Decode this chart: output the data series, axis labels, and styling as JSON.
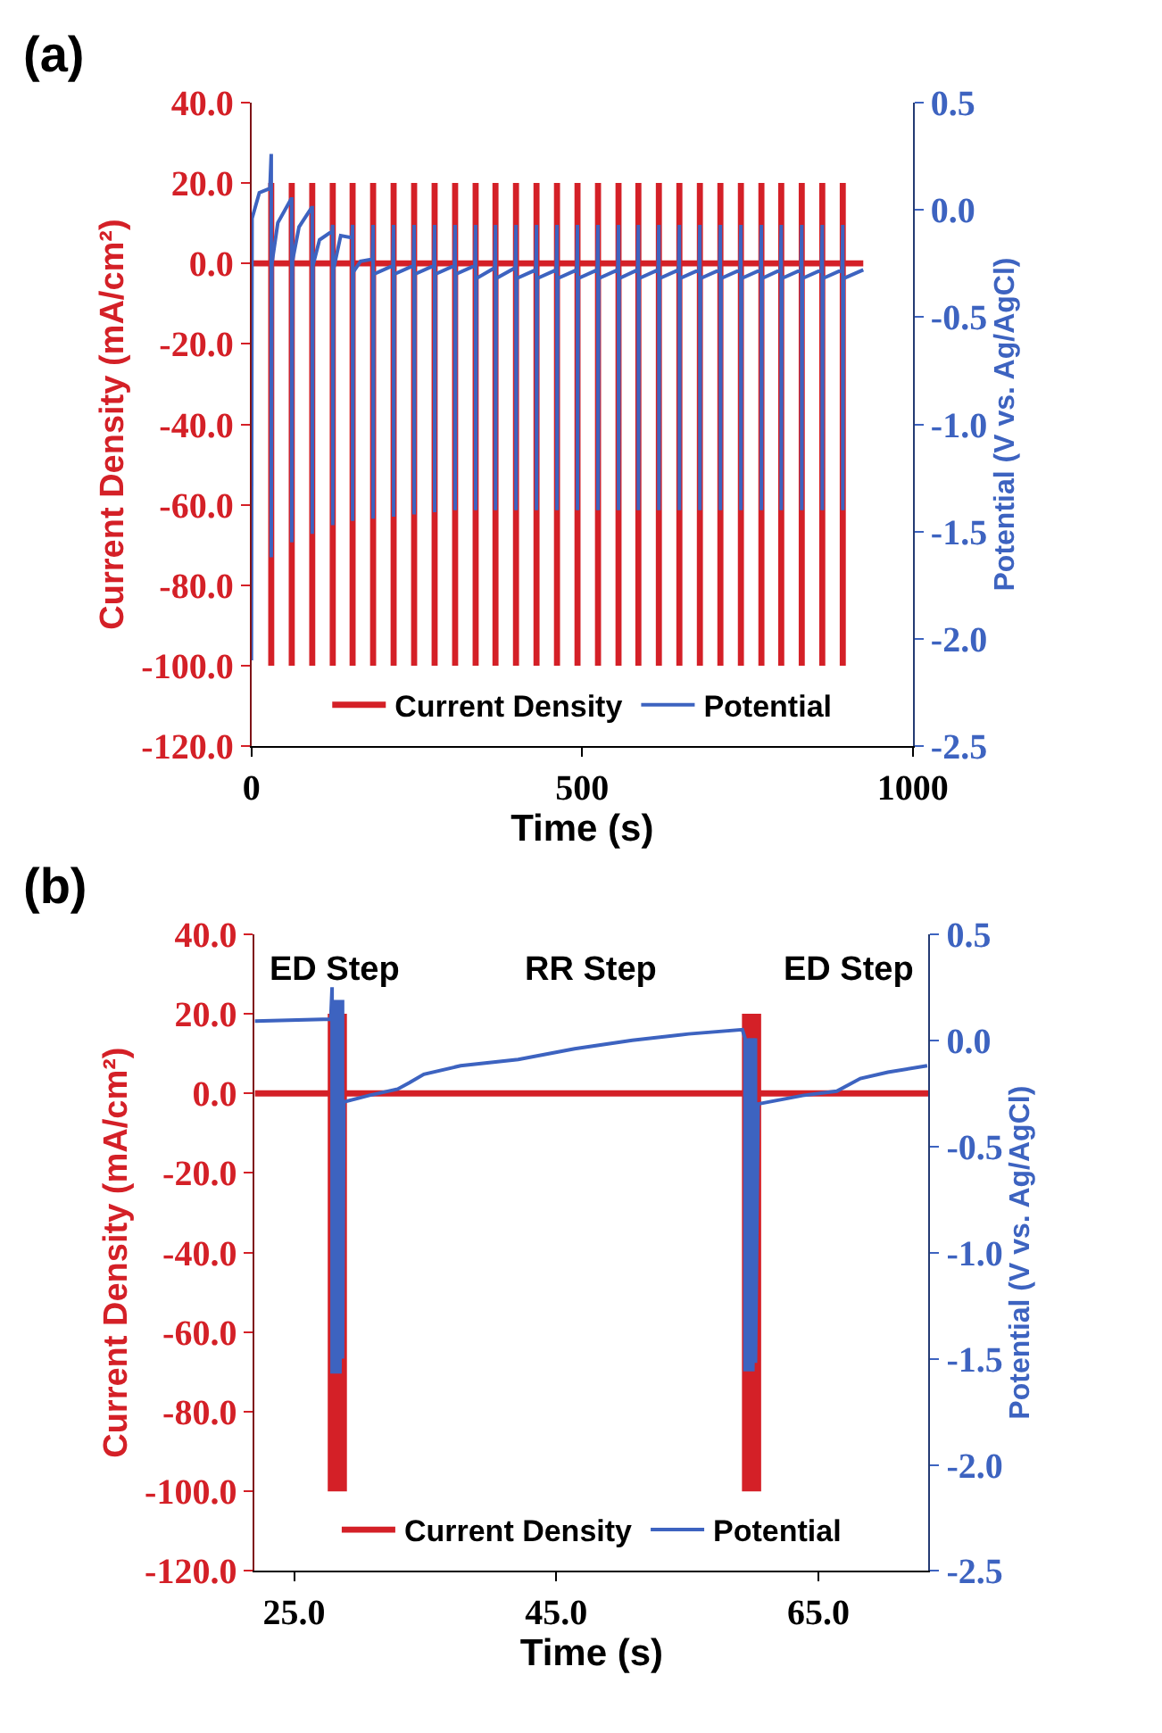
{
  "chart_data": [
    {
      "type": "line",
      "title": "(a)",
      "xlabel": "Time (s)",
      "ylabel": "Current Density (mA/cm²)",
      "y2label": "Potential (V vs. Ag/AgCl)",
      "legend": "bottom",
      "xlim": [
        0,
        1000
      ],
      "xticks": [
        0,
        500,
        1000
      ],
      "ylim": [
        -120,
        40
      ],
      "yticks": [
        {
          "value": 40,
          "label": "40.0"
        },
        {
          "value": 20,
          "label": "20.0"
        },
        {
          "value": 0,
          "label": "0.0"
        },
        {
          "value": -20,
          "label": "-20.0"
        },
        {
          "value": -40,
          "label": "-40.0"
        },
        {
          "value": -60,
          "label": "-60.0"
        },
        {
          "value": -80,
          "label": "-80.0"
        },
        {
          "value": -100,
          "label": "-100.0"
        },
        {
          "value": -120,
          "label": "-120.0"
        }
      ],
      "y2lim": [
        -2.5,
        0.5
      ],
      "y2ticks": [
        {
          "value": 0.5,
          "label": "0.5"
        },
        {
          "value": 0,
          "label": "0.0"
        },
        {
          "value": -0.5,
          "label": "-0.5"
        },
        {
          "value": -1,
          "label": "-1.0"
        },
        {
          "value": -1.5,
          "label": "-1.5"
        },
        {
          "value": -2,
          "label": "-2.0"
        },
        {
          "value": -2.5,
          "label": "-2.5"
        }
      ],
      "series": [
        {
          "name": "Current Density",
          "color": "#d42027",
          "x": [
            0,
            30,
            30,
            30,
            30,
            61,
            61,
            61,
            61,
            92,
            92,
            92,
            92,
            123,
            123,
            123,
            123,
            153,
            153,
            153,
            153,
            184,
            184,
            184,
            184,
            215,
            215,
            215,
            215,
            246,
            246,
            246,
            246,
            277,
            277,
            277,
            277,
            308,
            308,
            308,
            308,
            339,
            339,
            339,
            339,
            369,
            369,
            369,
            369,
            400,
            400,
            400,
            400,
            431,
            431,
            431,
            431,
            462,
            462,
            462,
            462,
            493,
            493,
            493,
            493,
            524,
            524,
            524,
            524,
            555,
            555,
            555,
            555,
            585,
            585,
            585,
            585,
            616,
            616,
            616,
            616,
            647,
            647,
            647,
            647,
            678,
            678,
            678,
            678,
            709,
            709,
            709,
            709,
            740,
            740,
            740,
            740,
            771,
            771,
            771,
            771,
            801,
            801,
            801,
            801,
            832,
            832,
            832,
            832,
            863,
            863,
            863,
            863,
            894,
            894,
            894,
            894,
            925
          ],
          "values": [
            0,
            0,
            20,
            -100,
            0,
            0,
            20,
            -100,
            0,
            0,
            20,
            -100,
            0,
            0,
            20,
            -100,
            0,
            0,
            20,
            -100,
            0,
            0,
            20,
            -100,
            0,
            0,
            20,
            -100,
            0,
            0,
            20,
            -100,
            0,
            0,
            20,
            -100,
            0,
            0,
            20,
            -100,
            0,
            0,
            20,
            -100,
            0,
            0,
            20,
            -100,
            0,
            0,
            20,
            -100,
            0,
            0,
            20,
            -100,
            0,
            0,
            20,
            -100,
            0,
            0,
            20,
            -100,
            0,
            0,
            20,
            -100,
            0,
            0,
            20,
            -100,
            0,
            0,
            20,
            -100,
            0,
            0,
            20,
            -100,
            0,
            0,
            20,
            -100,
            0,
            0,
            20,
            -100,
            0,
            0,
            20,
            -100,
            0,
            0,
            20,
            -100,
            0,
            0,
            20,
            -100,
            0,
            0,
            20,
            -100,
            0,
            0,
            20,
            -100,
            0,
            0,
            20,
            -100,
            0,
            0,
            20,
            -100,
            0,
            0
          ]
        },
        {
          "name": "Potential",
          "color": "#3d63c0",
          "axis": "y2",
          "x": [
            0,
            1,
            12,
            28,
            30,
            30,
            31,
            40,
            60,
            61,
            61,
            62,
            72,
            91,
            92,
            92,
            93,
            103,
            122,
            123,
            123,
            124,
            135,
            152,
            153,
            153,
            154,
            165,
            183,
            184,
            184,
            185,
            214,
            215,
            215,
            216,
            245,
            246,
            246,
            247,
            276,
            277,
            277,
            278,
            307,
            308,
            308,
            309,
            338,
            339,
            339,
            340,
            368,
            369,
            369,
            370,
            399,
            400,
            400,
            401,
            430,
            431,
            431,
            432,
            461,
            462,
            462,
            463,
            492,
            493,
            493,
            494,
            523,
            524,
            524,
            525,
            554,
            555,
            555,
            556,
            584,
            585,
            585,
            586,
            615,
            616,
            616,
            617,
            646,
            647,
            647,
            648,
            677,
            678,
            678,
            679,
            708,
            709,
            709,
            710,
            739,
            740,
            740,
            741,
            770,
            771,
            771,
            772,
            800,
            801,
            801,
            802,
            831,
            832,
            832,
            833,
            862,
            863,
            863,
            864,
            893,
            894,
            894,
            895,
            925
          ],
          "values": [
            -2.1,
            -0.04,
            0.08,
            0.1,
            0.26,
            -1.62,
            -0.25,
            -0.06,
            0.05,
            0.05,
            -1.55,
            -0.24,
            -0.08,
            0.01,
            0.01,
            -1.51,
            -0.26,
            -0.14,
            -0.1,
            -0.07,
            -1.47,
            -0.28,
            -0.12,
            -0.13,
            -0.07,
            -1.45,
            -0.29,
            -0.24,
            -0.23,
            -0.07,
            -1.44,
            -0.3,
            -0.26,
            -0.07,
            -1.43,
            -0.3,
            -0.26,
            -0.07,
            -1.42,
            -0.3,
            -0.26,
            -0.07,
            -1.41,
            -0.3,
            -0.26,
            -0.07,
            -1.4,
            -0.3,
            -0.26,
            -0.07,
            -1.4,
            -0.32,
            -0.27,
            -0.07,
            -1.4,
            -0.32,
            -0.27,
            -0.07,
            -1.4,
            -0.32,
            -0.28,
            -0.07,
            -1.4,
            -0.32,
            -0.28,
            -0.07,
            -1.4,
            -0.32,
            -0.28,
            -0.07,
            -1.4,
            -0.32,
            -0.28,
            -0.07,
            -1.4,
            -0.32,
            -0.28,
            -0.07,
            -1.4,
            -0.32,
            -0.28,
            -0.07,
            -1.4,
            -0.32,
            -0.28,
            -0.07,
            -1.4,
            -0.32,
            -0.28,
            -0.07,
            -1.4,
            -0.32,
            -0.28,
            -0.07,
            -1.4,
            -0.32,
            -0.28,
            -0.07,
            -1.4,
            -0.32,
            -0.28,
            -0.07,
            -1.4,
            -0.32,
            -0.28,
            -0.07,
            -1.4,
            -0.32,
            -0.28,
            -0.07,
            -1.4,
            -0.32,
            -0.28,
            -0.07,
            -1.4,
            -0.32,
            -0.28,
            -0.07,
            -1.4,
            -0.32,
            -0.28,
            -0.07,
            -1.4,
            -0.32,
            -0.28
          ]
        }
      ]
    },
    {
      "type": "line",
      "title": "(b)",
      "xlabel": "Time (s)",
      "ylabel": "Current Density (mA/cm²)",
      "y2label": "Potential (V vs. Ag/AgCl)",
      "legend": "bottom",
      "xlim": [
        22,
        73.4
      ],
      "xticks": [
        {
          "value": 25,
          "label": "25.0"
        },
        {
          "value": 45,
          "label": "45.0"
        },
        {
          "value": 65,
          "label": "65.0"
        }
      ],
      "ylim": [
        -120,
        40
      ],
      "yticks": [
        {
          "value": 40,
          "label": "40.0"
        },
        {
          "value": 20,
          "label": "20.0"
        },
        {
          "value": 0,
          "label": "0.0"
        },
        {
          "value": -20,
          "label": "-20.0"
        },
        {
          "value": -40,
          "label": "-40.0"
        },
        {
          "value": -60,
          "label": "-60.0"
        },
        {
          "value": -80,
          "label": "-80.0"
        },
        {
          "value": -100,
          "label": "-100.0"
        },
        {
          "value": -120,
          "label": "-120.0"
        }
      ],
      "y2lim": [
        -2.5,
        0.5
      ],
      "y2ticks": [
        {
          "value": 0.5,
          "label": "0.5"
        },
        {
          "value": 0,
          "label": "0.0"
        },
        {
          "value": -0.5,
          "label": "-0.5"
        },
        {
          "value": -1,
          "label": "-1.0"
        },
        {
          "value": -1.5,
          "label": "-1.5"
        },
        {
          "value": -2,
          "label": "-2.0"
        },
        {
          "value": -2.5,
          "label": "-2.5"
        }
      ],
      "annotations": [
        "ED Step",
        "RR Step",
        "ED Step"
      ],
      "series": [
        {
          "name": "Current Density",
          "color": "#d42027",
          "x": [
            22,
            27.8,
            27.8,
            27.8,
            28.0,
            28.0,
            28.2,
            28.2,
            28.4,
            28.4,
            28.6,
            28.6,
            28.8,
            28.8,
            28.8,
            59.4,
            59.4,
            59.4,
            59.6,
            59.6,
            59.8,
            59.8,
            60.0,
            60.0,
            60.2,
            60.2,
            60.4,
            60.4,
            60.4,
            73.4
          ],
          "values": [
            0,
            0,
            20,
            -100,
            20,
            -100,
            20,
            -100,
            20,
            -100,
            20,
            -100,
            20,
            -100,
            0,
            0,
            20,
            -100,
            20,
            -100,
            20,
            -100,
            20,
            -100,
            20,
            -100,
            20,
            -100,
            0,
            0
          ]
        },
        {
          "name": "Potential",
          "color": "#3d63c0",
          "axis": "y2",
          "x": [
            22.0,
            27.8,
            27.9,
            27.9,
            28.1,
            28.1,
            28.3,
            28.3,
            28.5,
            28.5,
            28.7,
            28.7,
            28.8,
            30.7,
            32.9,
            33.8,
            34.9,
            37.7,
            42.1,
            46.4,
            50.8,
            55.1,
            59.2,
            59.4,
            59.4,
            59.6,
            59.6,
            59.8,
            59.8,
            60.0,
            60.0,
            60.2,
            60.2,
            60.4,
            63.8,
            66.4,
            68.2,
            70.3,
            73.3
          ],
          "values": [
            0.09,
            0.1,
            0.25,
            -1.57,
            0.19,
            -1.57,
            0.19,
            -1.57,
            0.19,
            -1.57,
            0.19,
            -1.5,
            -0.29,
            -0.26,
            -0.23,
            -0.2,
            -0.16,
            -0.12,
            -0.09,
            -0.04,
            0.0,
            0.03,
            0.05,
            0.01,
            -1.56,
            0.01,
            -1.56,
            0.01,
            -1.56,
            0.01,
            -1.56,
            0.01,
            -1.52,
            -0.3,
            -0.26,
            -0.24,
            -0.18,
            -0.15,
            -0.12
          ]
        }
      ]
    }
  ]
}
